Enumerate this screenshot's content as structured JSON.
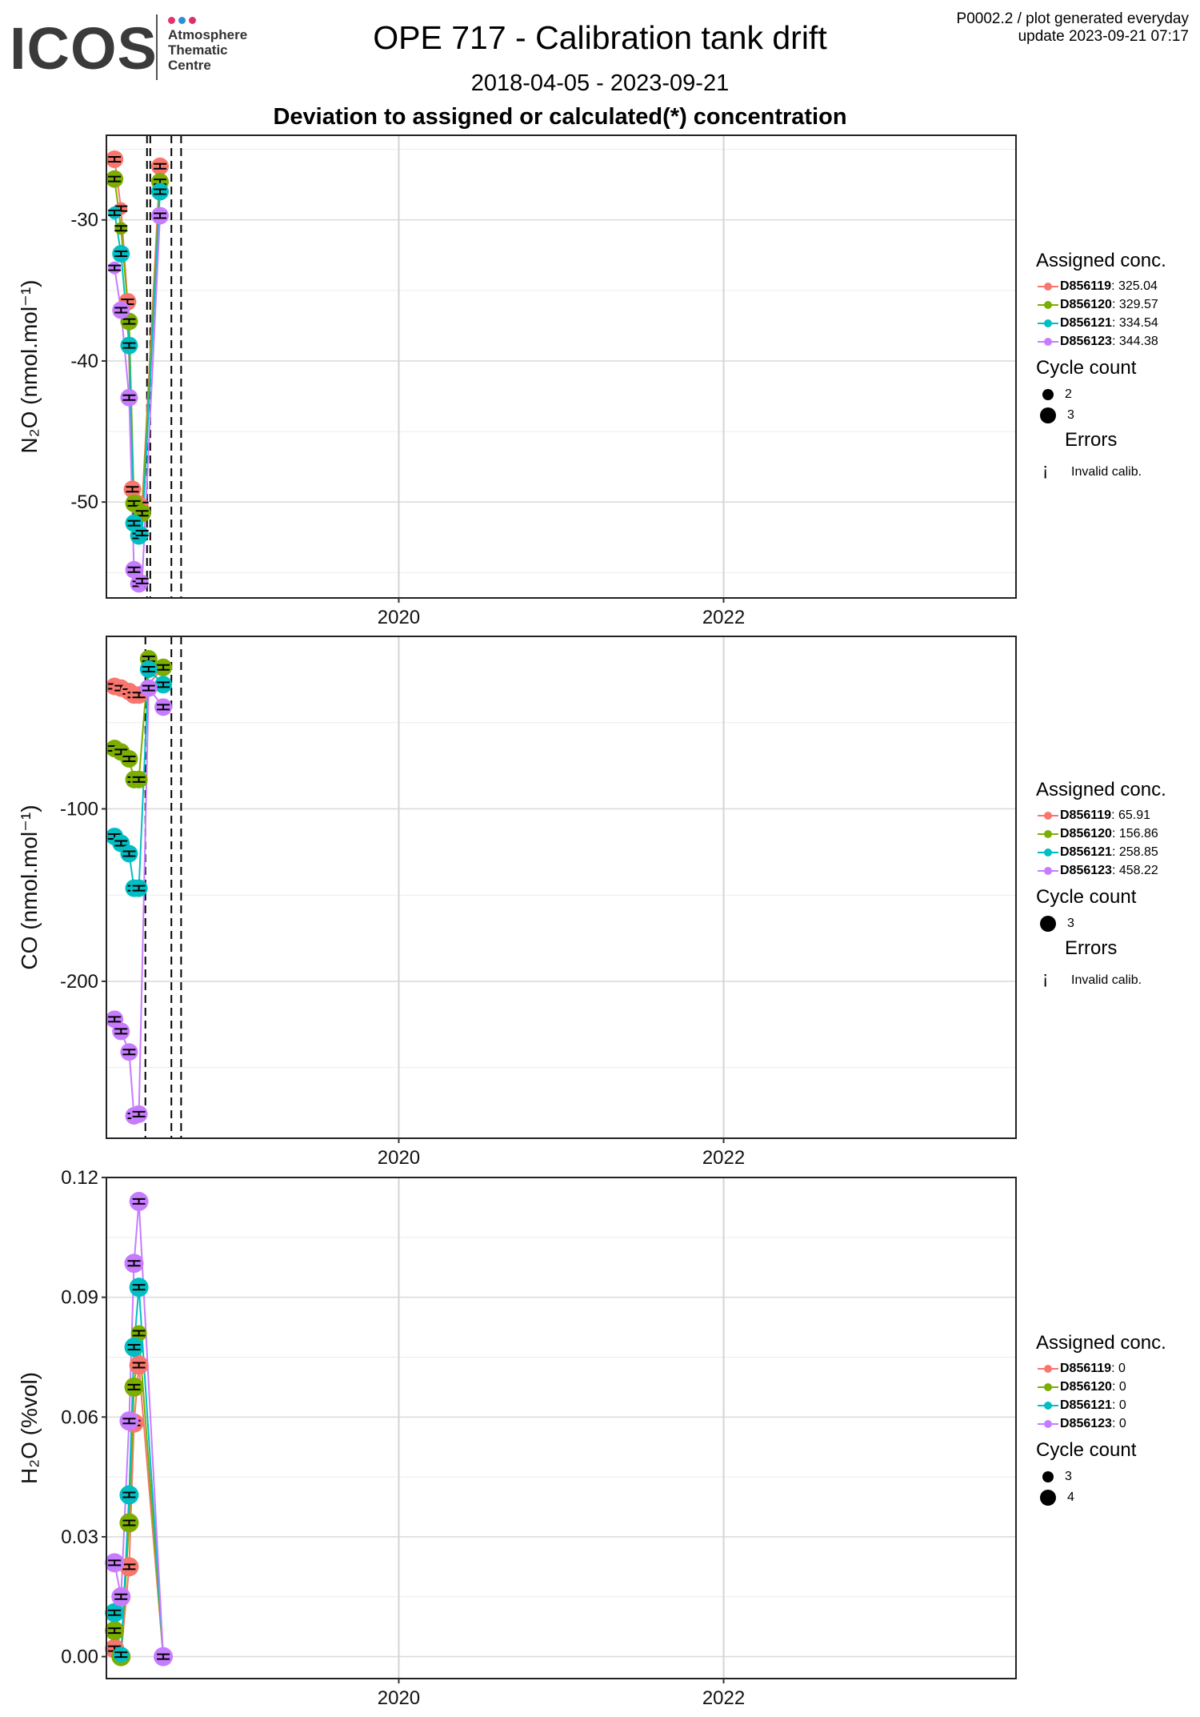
{
  "header": {
    "logo_text": "ICOS",
    "logo_line1": "Atmosphere",
    "logo_line2": "Thematic",
    "logo_line3": "Centre",
    "title": "OPE 717 - Calibration tank drift",
    "date_range": "2018-04-05 - 2023-09-21",
    "subtitle": "Deviation to assigned or calculated(*) concentration",
    "top_right_line1": "P0002.2 / plot generated everyday",
    "top_right_line2": "update  2023-09-21 07:17"
  },
  "colors": {
    "D856119": "#F8766D",
    "D856120": "#7CAE00",
    "D856121": "#00BFC4",
    "D856123": "#C77CFF"
  },
  "panels": [
    {
      "legend": {
        "title": "Assigned conc.",
        "entries": [
          {
            "tank": "D856119",
            "value": ": 325.04"
          },
          {
            "tank": "D856120",
            "value": ": 329.57"
          },
          {
            "tank": "D856121",
            "value": ": 334.54"
          },
          {
            "tank": "D856123",
            "value": ": 344.38"
          }
        ],
        "cycle_title": "Cycle count",
        "cycles": [
          "2",
          "3"
        ],
        "errors_title": "Errors",
        "error_label": "Invalid calib."
      }
    },
    {
      "legend": {
        "title": "Assigned conc.",
        "entries": [
          {
            "tank": "D856119",
            "value": ": 65.91"
          },
          {
            "tank": "D856120",
            "value": ": 156.86"
          },
          {
            "tank": "D856121",
            "value": ": 258.85"
          },
          {
            "tank": "D856123",
            "value": ": 458.22"
          }
        ],
        "cycle_title": "Cycle count",
        "cycles": [
          "3"
        ],
        "errors_title": "Errors",
        "error_label": "Invalid calib."
      }
    },
    {
      "legend": {
        "title": "Assigned conc.",
        "entries": [
          {
            "tank": "D856119",
            "value": ": 0"
          },
          {
            "tank": "D856120",
            "value": ": 0"
          },
          {
            "tank": "D856121",
            "value": ": 0"
          },
          {
            "tank": "D856123",
            "value": ": 0"
          }
        ],
        "cycle_title": "Cycle count",
        "cycles": [
          "3",
          "4"
        ],
        "errors_title": "",
        "error_label": ""
      }
    }
  ],
  "chart_data": [
    {
      "type": "scatter",
      "ylabel": "N₂O (nmol.mol⁻¹)",
      "xlim": [
        2018.2,
        2023.8
      ],
      "ylim": [
        -56.8,
        -24.0
      ],
      "yticks": [
        -30,
        -40,
        -50
      ],
      "xticks": [
        2020,
        2022
      ],
      "grid": true,
      "vlines": [
        2018.45,
        2018.47,
        2018.6,
        2018.66
      ],
      "series": [
        {
          "name": "D856119",
          "x": [
            2018.25,
            2018.29,
            2018.33,
            2018.36,
            2018.39,
            2018.42,
            2018.53
          ],
          "y": [
            -25.7,
            -29.2,
            -35.8,
            -49.1,
            -50.1,
            -50.2,
            -26.2
          ],
          "cycles": [
            3,
            2,
            3,
            3,
            3,
            2,
            3
          ]
        },
        {
          "name": "D856120",
          "x": [
            2018.25,
            2018.29,
            2018.34,
            2018.37,
            2018.4,
            2018.42,
            2018.53
          ],
          "y": [
            -27.1,
            -30.6,
            -37.2,
            -50.1,
            -51.0,
            -50.8,
            -27.3
          ],
          "cycles": [
            3,
            2,
            3,
            3,
            2,
            3,
            3
          ]
        },
        {
          "name": "D856121",
          "x": [
            2018.25,
            2018.29,
            2018.34,
            2018.37,
            2018.4,
            2018.42,
            2018.53
          ],
          "y": [
            -29.5,
            -32.4,
            -38.9,
            -51.5,
            -52.4,
            -52.2,
            -28.0
          ],
          "cycles": [
            2,
            3,
            3,
            3,
            3,
            2,
            3
          ]
        },
        {
          "name": "D856123",
          "x": [
            2018.25,
            2018.29,
            2018.34,
            2018.37,
            2018.4,
            2018.42,
            2018.53
          ],
          "y": [
            -33.4,
            -36.4,
            -42.6,
            -54.8,
            -55.8,
            -55.6,
            -29.7
          ],
          "cycles": [
            2,
            3,
            3,
            3,
            3,
            2,
            3
          ]
        }
      ]
    },
    {
      "type": "scatter",
      "ylabel": "CO (nmol.mol⁻¹)",
      "xlim": [
        2018.2,
        2023.8
      ],
      "ylim": [
        -291,
        0
      ],
      "yticks": [
        -100,
        -200
      ],
      "xticks": [
        2020,
        2022
      ],
      "grid": true,
      "vlines": [
        2018.44,
        2018.6,
        2018.66
      ],
      "series": [
        {
          "name": "D856119",
          "x": [
            2018.25,
            2018.29,
            2018.34,
            2018.37,
            2018.4,
            2018.55
          ],
          "y": [
            -29,
            -30,
            -32,
            -34,
            -34,
            -18
          ],
          "cycles": [
            3,
            3,
            3,
            3,
            3,
            3
          ]
        },
        {
          "name": "D856120",
          "x": [
            2018.25,
            2018.29,
            2018.34,
            2018.37,
            2018.4,
            2018.46,
            2018.55
          ],
          "y": [
            -65,
            -67,
            -71,
            -83,
            -83,
            -13,
            -18
          ],
          "cycles": [
            3,
            3,
            3,
            3,
            3,
            3,
            3
          ]
        },
        {
          "name": "D856121",
          "x": [
            2018.25,
            2018.29,
            2018.34,
            2018.37,
            2018.4,
            2018.46,
            2018.55
          ],
          "y": [
            -116,
            -120,
            -126,
            -146,
            -146,
            -19,
            -28
          ],
          "cycles": [
            3,
            3,
            3,
            3,
            3,
            3,
            3
          ]
        },
        {
          "name": "D856123",
          "x": [
            2018.25,
            2018.29,
            2018.34,
            2018.37,
            2018.4,
            2018.46,
            2018.55
          ],
          "y": [
            -222,
            -229,
            -241,
            -278,
            -277,
            -30,
            -41
          ],
          "cycles": [
            3,
            3,
            3,
            3,
            3,
            3,
            3
          ]
        }
      ]
    },
    {
      "type": "scatter",
      "ylabel": "H₂O (%vol)",
      "xlim": [
        2018.2,
        2023.8
      ],
      "ylim": [
        -0.0055,
        0.12
      ],
      "yticks": [
        0.12,
        0.09,
        0.06,
        0.03,
        0.0
      ],
      "yticklabels": [
        "0.12",
        "0.09",
        "0.06",
        "0.03",
        "0.00"
      ],
      "xticks": [
        2020,
        2022
      ],
      "grid": true,
      "vlines": [],
      "series": [
        {
          "name": "D856119",
          "x": [
            2018.25,
            2018.29,
            2018.34,
            2018.37,
            2018.4,
            2018.55
          ],
          "y": [
            0.002,
            0.0005,
            0.0225,
            0.0585,
            0.073,
            0.0
          ],
          "cycles": [
            4,
            3,
            4,
            4,
            4,
            3
          ]
        },
        {
          "name": "D856120",
          "x": [
            2018.25,
            2018.29,
            2018.34,
            2018.37,
            2018.4,
            2018.55
          ],
          "y": [
            0.0065,
            0.0,
            0.0335,
            0.0675,
            0.081,
            0.0
          ],
          "cycles": [
            4,
            4,
            4,
            4,
            3,
            3
          ]
        },
        {
          "name": "D856121",
          "x": [
            2018.25,
            2018.29,
            2018.34,
            2018.37,
            2018.4,
            2018.55
          ],
          "y": [
            0.011,
            0.0005,
            0.0405,
            0.0775,
            0.0925,
            0.0
          ],
          "cycles": [
            4,
            3,
            4,
            4,
            4,
            3
          ]
        },
        {
          "name": "D856123",
          "x": [
            2018.25,
            2018.29,
            2018.34,
            2018.37,
            2018.4,
            2018.55
          ],
          "y": [
            0.0235,
            0.015,
            0.059,
            0.0985,
            0.114,
            0.0
          ],
          "cycles": [
            4,
            4,
            4,
            4,
            4,
            4
          ]
        }
      ]
    }
  ]
}
